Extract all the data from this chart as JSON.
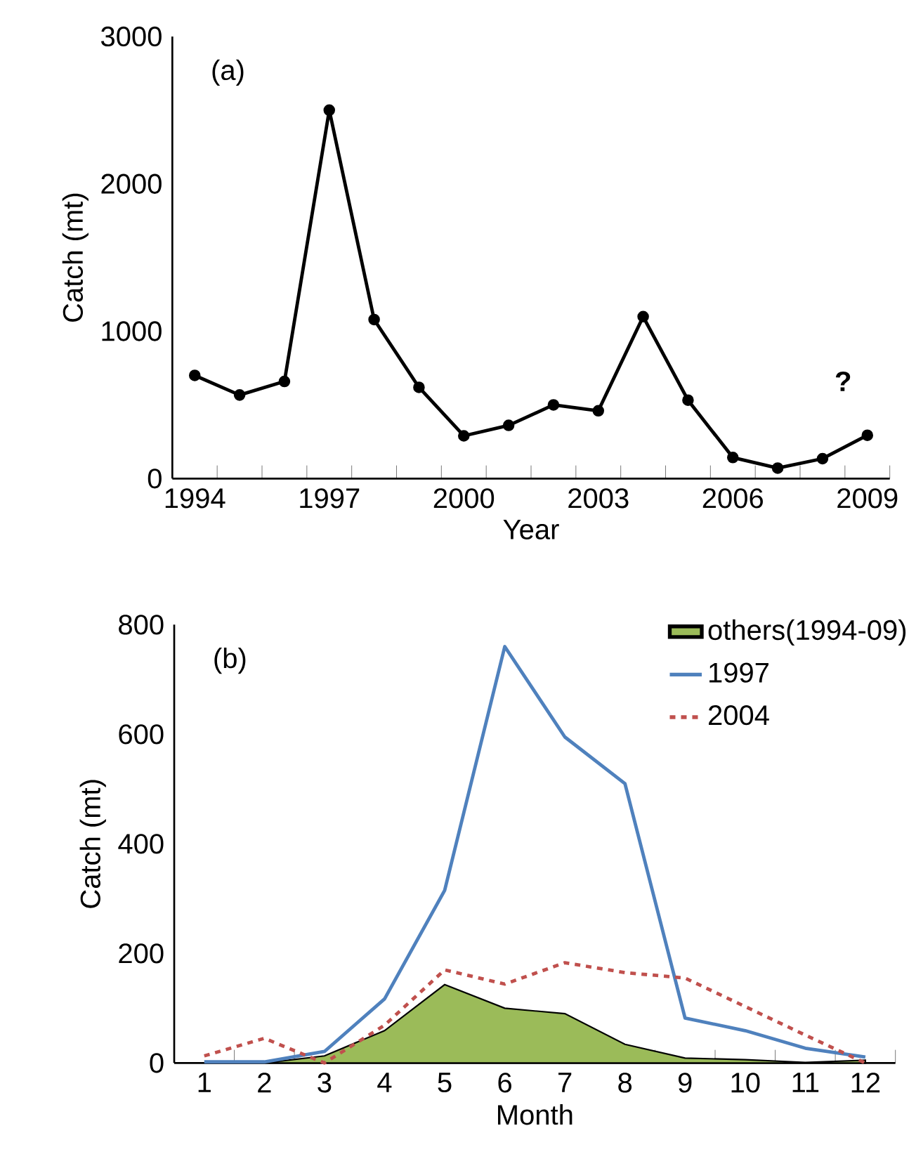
{
  "chart_data": [
    {
      "type": "line",
      "title": "(a)",
      "xlabel": "Year",
      "ylabel": "Catch (mt)",
      "categories": [
        "1994",
        null,
        null,
        "1997",
        null,
        null,
        "2000",
        null,
        null,
        "2003",
        null,
        null,
        "2006",
        null,
        null,
        "2009"
      ],
      "series": [
        {
          "color": "#000000",
          "marker": "circle",
          "values": [
            700,
            567,
            659,
            2500,
            1079,
            619,
            290,
            361,
            500,
            460,
            1099,
            532,
            143,
            71,
            135,
            294
          ]
        }
      ],
      "ylim": [
        0,
        3000
      ],
      "yticks": [
        0,
        1000,
        2000,
        3000
      ],
      "annotations": [
        "?"
      ]
    },
    {
      "type": "line",
      "title": "(b)",
      "xlabel": "Month",
      "ylabel": "Catch (mt)",
      "categories": [
        "1",
        "2",
        "3",
        "4",
        "5",
        "6",
        "7",
        "8",
        "9",
        "10",
        "11",
        "12"
      ],
      "series": [
        {
          "type": "area",
          "name": "others(1994-09)",
          "color": "#9bbb59",
          "values": [
            0,
            0,
            13,
            59,
            143,
            100,
            90,
            34,
            9,
            6,
            1,
            5
          ]
        },
        {
          "name": "1997",
          "color": "#4f81bd",
          "values": [
            2,
            2,
            21,
            117,
            315,
            760,
            595,
            510,
            82,
            59,
            27,
            11
          ]
        },
        {
          "name": "2004",
          "color": "#c0504d",
          "line_style": "dashed",
          "values": [
            13,
            45,
            0,
            69,
            170,
            144,
            183,
            165,
            155,
            103,
            51,
            0
          ]
        }
      ],
      "ylim": [
        0,
        800
      ],
      "yticks": [
        0,
        200,
        400,
        600,
        800
      ],
      "legend": "top right"
    }
  ]
}
